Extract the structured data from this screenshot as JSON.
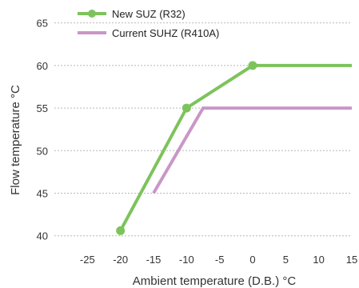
{
  "chart_data": {
    "type": "line",
    "xlabel": "Ambient temperature (D.B.) °C",
    "ylabel": "Flow temperature °C",
    "xlim": [
      -30,
      15
    ],
    "ylim": [
      38,
      66
    ],
    "x_ticks": [
      "-25",
      "-20",
      "-15",
      "-10",
      "-5",
      "0",
      "5",
      "10",
      "15"
    ],
    "x_tick_values": [
      -25,
      -20,
      -15,
      -10,
      -5,
      0,
      5,
      10,
      15
    ],
    "y_ticks": [
      "40",
      "45",
      "50",
      "55",
      "60",
      "65"
    ],
    "y_tick_values": [
      40,
      45,
      50,
      55,
      60,
      65
    ],
    "grid": "horizontal dashed",
    "legend_position": "top",
    "series": [
      {
        "name": "New SUZ (R32)",
        "color": "#7dc35b",
        "markers": true,
        "x": [
          -20,
          -10,
          0,
          15
        ],
        "y": [
          40.6,
          55,
          60,
          60
        ],
        "marker_x": [
          -20,
          -10,
          0
        ],
        "marker_y": [
          40.6,
          55,
          60
        ]
      },
      {
        "name": "Current SUHZ (R410A)",
        "color": "#c997c6",
        "markers": false,
        "x": [
          -15,
          -7.5,
          15
        ],
        "y": [
          45,
          55,
          55
        ]
      }
    ]
  }
}
